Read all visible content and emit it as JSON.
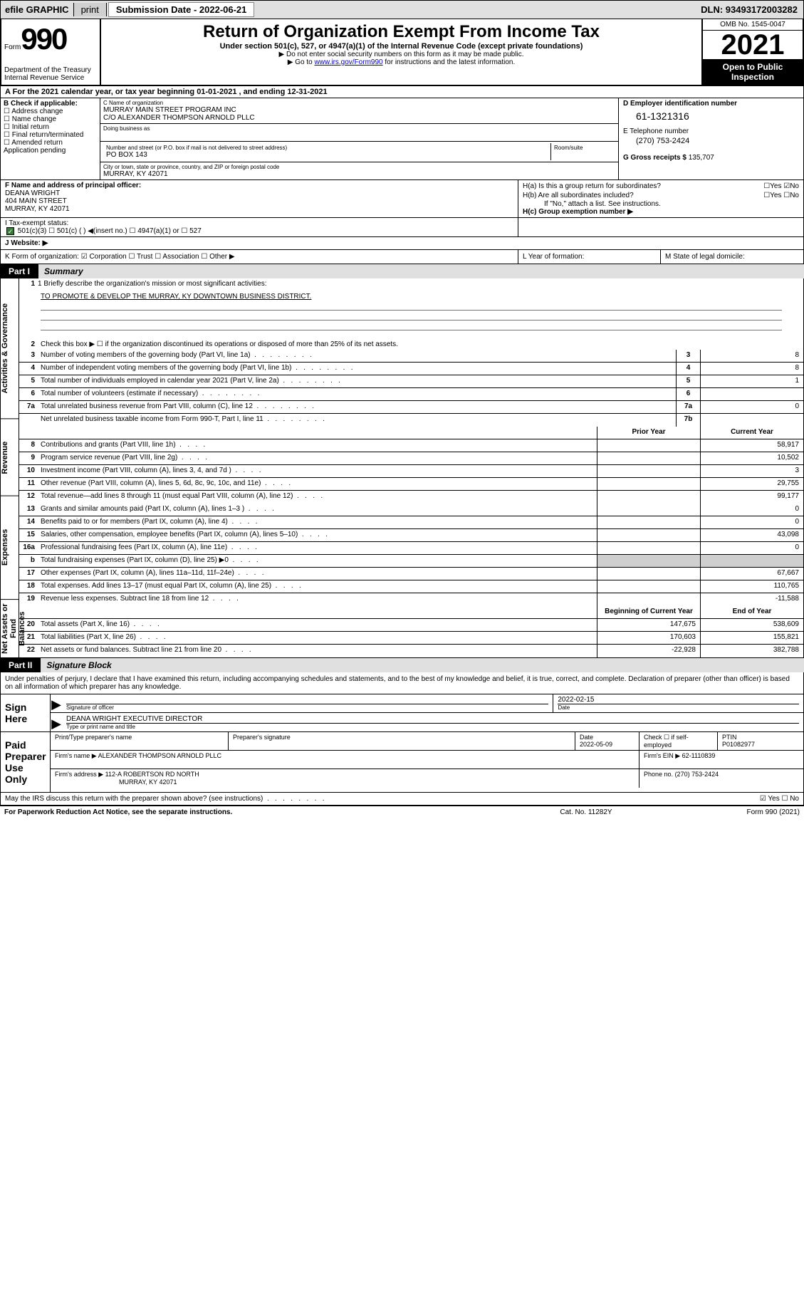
{
  "topbar": {
    "efile": "efile GRAPHIC",
    "print": "print",
    "subdate_label": "Submission Date - 2022-06-21",
    "dln": "DLN: 93493172003282"
  },
  "header": {
    "form_word": "Form",
    "form_num": "990",
    "title": "Return of Organization Exempt From Income Tax",
    "sub1": "Under section 501(c), 527, or 4947(a)(1) of the Internal Revenue Code (except private foundations)",
    "sub2": "▶ Do not enter social security numbers on this form as it may be made public.",
    "sub3_pre": "▶ Go to ",
    "sub3_link": "www.irs.gov/Form990",
    "sub3_post": " for instructions and the latest information.",
    "omb": "OMB No. 1545-0047",
    "year": "2021",
    "open": "Open to Public Inspection",
    "dept": "Department of the Treasury Internal Revenue Service"
  },
  "rowA": "A For the 2021 calendar year, or tax year beginning 01-01-2021   , and ending 12-31-2021",
  "colB": {
    "label": "B Check if applicable:",
    "items": [
      "☐ Address change",
      "☐ Name change",
      "☐ Initial return",
      "☐ Final return/terminated",
      "☐ Amended return",
      "  Application pending"
    ]
  },
  "colC": {
    "name_label": "C Name of organization",
    "name1": "MURRAY MAIN STREET PROGRAM INC",
    "name2": "C/O ALEXANDER THOMPSON ARNOLD PLLC",
    "dba_label": "Doing business as",
    "addr_label": "Number and street (or P.O. box if mail is not delivered to street address)",
    "room_label": "Room/suite",
    "addr": "PO BOX 143",
    "city_label": "City or town, state or province, country, and ZIP or foreign postal code",
    "city": "MURRAY, KY  42071"
  },
  "colD": {
    "ein_label": "D Employer identification number",
    "ein": "61-1321316",
    "phone_label": "E Telephone number",
    "phone": "(270) 753-2424",
    "gross_label": "G Gross receipts $",
    "gross": "135,707"
  },
  "colF": {
    "label": "F  Name and address of principal officer:",
    "name": "DEANA WRIGHT",
    "addr1": "404 MAIN STREET",
    "addr2": "MURRAY, KY  42071"
  },
  "colH": {
    "ha": "H(a)  Is this a group return for subordinates?",
    "ha_ans": "☐Yes ☑No",
    "hb": "H(b)  Are all subordinates included?",
    "hb_ans": "☐Yes ☐No",
    "hb_note": "If \"No,\" attach a list. See instructions.",
    "hc": "H(c)  Group exemption number ▶"
  },
  "rowI": {
    "label": "I     Tax-exempt status:",
    "opts": "501(c)(3)   ☐  501(c) (  ) ◀(insert no.)     ☐  4947(a)(1) or   ☐  527"
  },
  "rowJ": "J     Website: ▶",
  "rowK": {
    "k1": "K Form of organization:  ☑ Corporation ☐ Trust ☐ Association ☐ Other ▶",
    "k2": "L Year of formation:",
    "k3": "M State of legal domicile:"
  },
  "partI": {
    "num": "Part I",
    "title": "Summary"
  },
  "summary": {
    "side1": "Activities & Governance",
    "side2": "Revenue",
    "side3": "Expenses",
    "side4": "Net Assets or Fund Balances",
    "l1_label": "1  Briefly describe the organization's mission or most significant activities:",
    "l1_text": "TO PROMOTE & DEVELOP THE MURRAY, KY DOWNTOWN BUSINESS DISTRICT.",
    "l2": "Check this box ▶ ☐  if the organization discontinued its operations or disposed of more than 25% of its net assets.",
    "rows_gov": [
      {
        "n": "3",
        "d": "Number of voting members of the governing body (Part VI, line 1a)",
        "ln": "3",
        "v": "8"
      },
      {
        "n": "4",
        "d": "Number of independent voting members of the governing body (Part VI, line 1b)",
        "ln": "4",
        "v": "8"
      },
      {
        "n": "5",
        "d": "Total number of individuals employed in calendar year 2021 (Part V, line 2a)",
        "ln": "5",
        "v": "1"
      },
      {
        "n": "6",
        "d": "Total number of volunteers (estimate if necessary)",
        "ln": "6",
        "v": ""
      },
      {
        "n": "7a",
        "d": "Total unrelated business revenue from Part VIII, column (C), line 12",
        "ln": "7a",
        "v": "0"
      },
      {
        "n": "",
        "d": "Net unrelated business taxable income from Form 990-T, Part I, line 11",
        "ln": "7b",
        "v": ""
      }
    ],
    "head_prior": "Prior Year",
    "head_curr": "Current Year",
    "rows_rev": [
      {
        "n": "8",
        "d": "Contributions and grants (Part VIII, line 1h)",
        "p": "",
        "c": "58,917"
      },
      {
        "n": "9",
        "d": "Program service revenue (Part VIII, line 2g)",
        "p": "",
        "c": "10,502"
      },
      {
        "n": "10",
        "d": "Investment income (Part VIII, column (A), lines 3, 4, and 7d )",
        "p": "",
        "c": "3"
      },
      {
        "n": "11",
        "d": "Other revenue (Part VIII, column (A), lines 5, 6d, 8c, 9c, 10c, and 11e)",
        "p": "",
        "c": "29,755"
      },
      {
        "n": "12",
        "d": "Total revenue—add lines 8 through 11 (must equal Part VIII, column (A), line 12)",
        "p": "",
        "c": "99,177"
      }
    ],
    "rows_exp": [
      {
        "n": "13",
        "d": "Grants and similar amounts paid (Part IX, column (A), lines 1–3 )",
        "p": "",
        "c": "0"
      },
      {
        "n": "14",
        "d": "Benefits paid to or for members (Part IX, column (A), line 4)",
        "p": "",
        "c": "0"
      },
      {
        "n": "15",
        "d": "Salaries, other compensation, employee benefits (Part IX, column (A), lines 5–10)",
        "p": "",
        "c": "43,098"
      },
      {
        "n": "16a",
        "d": "Professional fundraising fees (Part IX, column (A), line 11e)",
        "p": "",
        "c": "0"
      },
      {
        "n": "b",
        "d": "Total fundraising expenses (Part IX, column (D), line 25) ▶0",
        "p": "shaded",
        "c": "shaded"
      },
      {
        "n": "17",
        "d": "Other expenses (Part IX, column (A), lines 11a–11d, 11f–24e)",
        "p": "",
        "c": "67,667"
      },
      {
        "n": "18",
        "d": "Total expenses. Add lines 13–17 (must equal Part IX, column (A), line 25)",
        "p": "",
        "c": "110,765"
      },
      {
        "n": "19",
        "d": "Revenue less expenses. Subtract line 18 from line 12",
        "p": "",
        "c": "-11,588"
      }
    ],
    "head_boy": "Beginning of Current Year",
    "head_eoy": "End of Year",
    "rows_net": [
      {
        "n": "20",
        "d": "Total assets (Part X, line 16)",
        "p": "147,675",
        "c": "538,609"
      },
      {
        "n": "21",
        "d": "Total liabilities (Part X, line 26)",
        "p": "170,603",
        "c": "155,821"
      },
      {
        "n": "22",
        "d": "Net assets or fund balances. Subtract line 21 from line 20",
        "p": "-22,928",
        "c": "382,788"
      }
    ]
  },
  "partII": {
    "num": "Part II",
    "title": "Signature Block"
  },
  "sig": {
    "intro": "Under penalties of perjury, I declare that I have examined this return, including accompanying schedules and statements, and to the best of my knowledge and belief, it is true, correct, and complete. Declaration of preparer (other than officer) is based on all information of which preparer has any knowledge.",
    "sign_here": "Sign Here",
    "sig_officer": "Signature of officer",
    "date_val": "2022-02-15",
    "date_lab": "Date",
    "name_title": "DEANA WRIGHT  EXECUTIVE DIRECTOR",
    "name_lab": "Type or print name and title",
    "paid": "Paid Preparer Use Only",
    "prep_name_lab": "Print/Type preparer's name",
    "prep_sig_lab": "Preparer's signature",
    "prep_date_lab": "Date",
    "prep_date": "2022-05-09",
    "check_self": "Check ☐ if self-employed",
    "ptin_lab": "PTIN",
    "ptin": "P01082977",
    "firm_name_lab": "Firm's name    ▶",
    "firm_name": "ALEXANDER THOMPSON ARNOLD PLLC",
    "firm_ein_lab": "Firm's EIN ▶",
    "firm_ein": "62-1110839",
    "firm_addr_lab": "Firm's address ▶",
    "firm_addr1": "112-A ROBERTSON RD NORTH",
    "firm_addr2": "MURRAY, KY  42071",
    "firm_phone_lab": "Phone no.",
    "firm_phone": "(270) 753-2424"
  },
  "discuss": {
    "q": "May the IRS discuss this return with the preparer shown above? (see instructions)",
    "ans": "☑ Yes  ☐ No"
  },
  "footer": {
    "l": "For Paperwork Reduction Act Notice, see the separate instructions.",
    "m": "Cat. No. 11282Y",
    "r": "Form 990 (2021)"
  }
}
